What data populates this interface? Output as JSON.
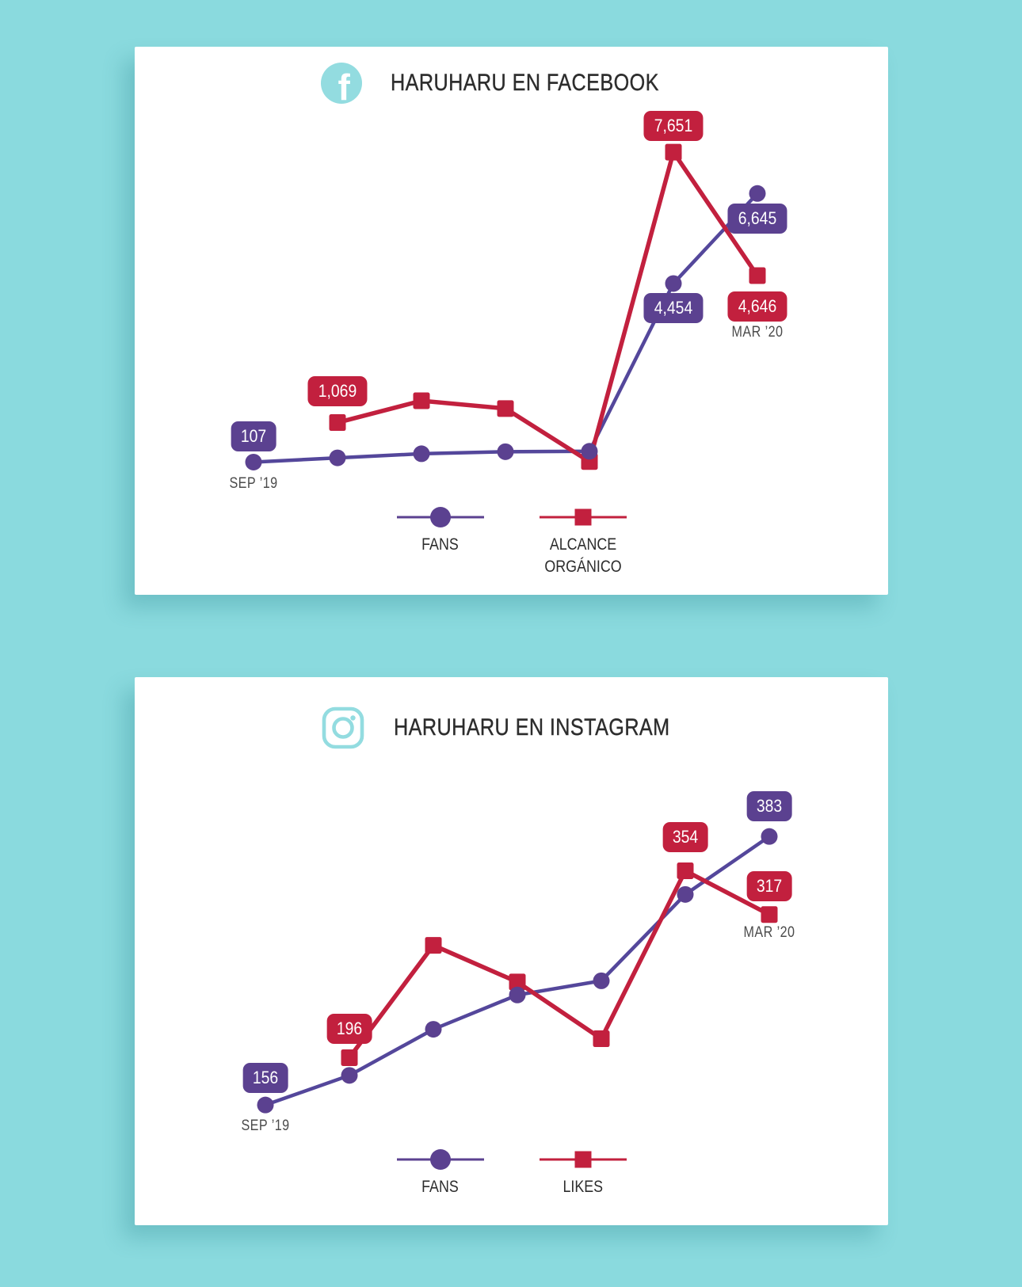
{
  "colors": {
    "background": "#8adade",
    "card": "#ffffff",
    "purple": "#5b4190",
    "purple_line": "#54479b",
    "red": "#c2203e",
    "icon_teal": "#93dce0",
    "title_text": "#2d2d2d",
    "axis_text": "#4b4b4b"
  },
  "chart_data": [
    {
      "type": "line",
      "title": "HARUHARU EN FACEBOOK",
      "icon": "facebook-icon",
      "x_count": 7,
      "ylim": [
        0,
        8000
      ],
      "grid": false,
      "legend_position": "bottom-center",
      "series": [
        {
          "name": "FANS",
          "marker": "circle",
          "color": "#5b4190",
          "line_color": "#54479b",
          "values": [
            107,
            210,
            310,
            360,
            370,
            4454,
            6645
          ]
        },
        {
          "name": "ALCANCE ORGÁNICO",
          "marker": "square",
          "color": "#c2203e",
          "line_color": "#c2203e",
          "values": [
            null,
            1069,
            1600,
            1410,
            120,
            7651,
            4646
          ]
        }
      ],
      "annotations": [
        {
          "text": "107",
          "series": 0,
          "point": 0,
          "kind": "badge",
          "placement": "above",
          "dy": 32
        },
        {
          "text": "1,069",
          "series": 1,
          "point": 1,
          "kind": "badge",
          "placement": "above",
          "dy": 40
        },
        {
          "text": "7,651",
          "series": 1,
          "point": 5,
          "kind": "badge",
          "placement": "above",
          "dy": 33
        },
        {
          "text": "4,454",
          "series": 0,
          "point": 5,
          "kind": "badge",
          "placement": "below",
          "dy": 31
        },
        {
          "text": "6,645",
          "series": 0,
          "point": 6,
          "kind": "badge",
          "placement": "below",
          "dy": 32
        },
        {
          "text": "4,646",
          "series": 1,
          "point": 6,
          "kind": "badge",
          "placement": "below",
          "dy": 39
        },
        {
          "text": "SEP ’19",
          "series": 0,
          "point": 0,
          "kind": "text",
          "placement": "below",
          "dy": 28
        },
        {
          "text": "MAR ’20",
          "series": 1,
          "point": 6,
          "kind": "text",
          "placement": "below",
          "dy": 72
        }
      ]
    },
    {
      "type": "line",
      "title": "HARUHARU EN INSTAGRAM",
      "icon": "instagram-icon",
      "x_count": 7,
      "ylim": [
        130,
        430
      ],
      "grid": false,
      "legend_position": "bottom-center",
      "series": [
        {
          "name": "FANS",
          "marker": "circle",
          "color": "#5b4190",
          "line_color": "#54479b",
          "values": [
            156,
            181,
            220,
            249,
            261,
            334,
            383
          ]
        },
        {
          "name": "LIKES",
          "marker": "square",
          "color": "#c2203e",
          "line_color": "#c2203e",
          "values": [
            null,
            196,
            291,
            260,
            212,
            354,
            317
          ]
        }
      ],
      "annotations": [
        {
          "text": "156",
          "series": 0,
          "point": 0,
          "kind": "badge",
          "placement": "above",
          "dy": 34
        },
        {
          "text": "196",
          "series": 1,
          "point": 1,
          "kind": "badge",
          "placement": "above",
          "dy": 36
        },
        {
          "text": "354",
          "series": 1,
          "point": 5,
          "kind": "badge",
          "placement": "above",
          "dy": 42
        },
        {
          "text": "383",
          "series": 0,
          "point": 6,
          "kind": "badge",
          "placement": "above",
          "dy": 38
        },
        {
          "text": "317",
          "series": 1,
          "point": 6,
          "kind": "badge",
          "placement": "above",
          "dy": 36
        },
        {
          "text": "SEP ’19",
          "series": 0,
          "point": 0,
          "kind": "text",
          "placement": "below",
          "dy": 27
        },
        {
          "text": "MAR ’20",
          "series": 1,
          "point": 6,
          "kind": "text",
          "placement": "below",
          "dy": 23
        }
      ]
    }
  ]
}
